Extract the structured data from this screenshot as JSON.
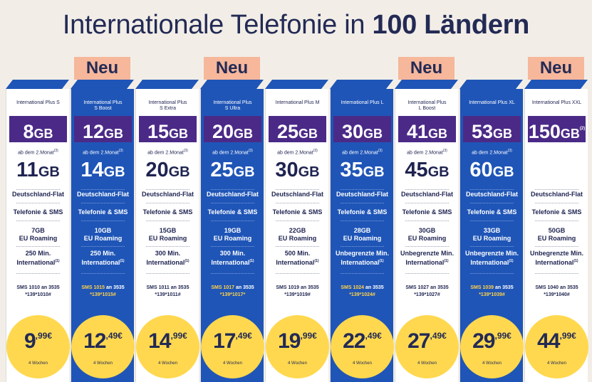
{
  "title": {
    "pre": "Internationale Telefonie in",
    "bold": "100 Ländern"
  },
  "labels": {
    "ab": "ab dem 2.Monat",
    "ab_sup": "(3)",
    "deutschland": "Deutschland-Flat",
    "telefonie": "Telefonie & SMS",
    "eu": "EU Roaming",
    "international": "International",
    "intl_sup": "(1)",
    "weeks": "4 Wochen",
    "sms_sep": "an 3535"
  },
  "colors": {
    "blue": "#1f55b7",
    "purple": "#4b2a87",
    "yellow": "#ffd84f",
    "neu": "#f6b79b"
  },
  "plans": [
    {
      "name1": "International Plus S",
      "name2": "",
      "neu": "",
      "gb": "8",
      "gb_unit": "GB",
      "gb_sup": "",
      "ab2": "11",
      "ab2_unit": "GB",
      "roam": "7GB",
      "min": "250 Min.",
      "sms": "SMS 1010",
      "code": "*139*1010#",
      "euro": "9",
      "cent": ",99€",
      "blue": false
    },
    {
      "name1": "International Plus",
      "name2": "S Boost",
      "neu": "Neu",
      "gb": "12",
      "gb_unit": "GB",
      "gb_sup": "",
      "ab2": "14",
      "ab2_unit": "GB",
      "roam": "10GB",
      "min": "250 Min.",
      "sms": "SMS 1015",
      "code": "*139*1015#",
      "euro": "12",
      "cent": ",49€",
      "blue": true
    },
    {
      "name1": "International Plus",
      "name2": "S Extra",
      "neu": "",
      "gb": "15",
      "gb_unit": "GB",
      "gb_sup": "",
      "ab2": "20",
      "ab2_unit": "GB",
      "roam": "15GB",
      "min": "300 Min.",
      "sms": "SMS 1011",
      "code": "*139*1011#",
      "euro": "14",
      "cent": ",99€",
      "blue": false
    },
    {
      "name1": "International Plus",
      "name2": "S Ultra",
      "neu": "Neu",
      "gb": "20",
      "gb_unit": "GB",
      "gb_sup": "",
      "ab2": "25",
      "ab2_unit": "GB",
      "roam": "19GB",
      "min": "300 Min.",
      "sms": "SMS 1017",
      "code": "*139*1017*",
      "euro": "17",
      "cent": ",49€",
      "blue": true
    },
    {
      "name1": "International Plus M",
      "name2": "",
      "neu": "",
      "gb": "25",
      "gb_unit": "GB",
      "gb_sup": "",
      "ab2": "30",
      "ab2_unit": "GB",
      "roam": "22GB",
      "min": "500 Min.",
      "sms": "SMS 1019",
      "code": "*139*1019#",
      "euro": "19",
      "cent": ",99€",
      "blue": false
    },
    {
      "name1": "International Plus L",
      "name2": "",
      "neu": "",
      "gb": "30",
      "gb_unit": "GB",
      "gb_sup": "",
      "ab2": "35",
      "ab2_unit": "GB",
      "roam": "28GB",
      "min": "Unbegrenzte Min.",
      "sms": "SMS 1024",
      "code": "*139*1024#",
      "euro": "22",
      "cent": ",49€",
      "blue": true
    },
    {
      "name1": "International Plus",
      "name2": "L Boost",
      "neu": "Neu",
      "gb": "41",
      "gb_unit": "GB",
      "gb_sup": "",
      "ab2": "45",
      "ab2_unit": "GB",
      "roam": "30GB",
      "min": "Unbegrenzte Min.",
      "sms": "SMS 1027",
      "code": "*139*1027#",
      "euro": "27",
      "cent": ",49€",
      "blue": false
    },
    {
      "name1": "International Plus XL",
      "name2": "",
      "neu": "",
      "gb": "53",
      "gb_unit": "GB",
      "gb_sup": "",
      "ab2": "60",
      "ab2_unit": "GB",
      "roam": "33GB",
      "min": "Unbegrenzte Min.",
      "sms": "SMS 1039",
      "code": "*139*1039#",
      "euro": "29",
      "cent": ",99€",
      "blue": true
    },
    {
      "name1": "International Plus XXL",
      "name2": "",
      "neu": "Neu",
      "gb": "150",
      "gb_unit": "GB",
      "gb_sup": "(2)",
      "ab2": "",
      "ab2_unit": "",
      "roam": "50GB",
      "min": "Unbegrenzte Min.",
      "sms": "SMS 1040",
      "code": "*139*1040#",
      "euro": "44",
      "cent": ",99€",
      "blue": false,
      "no_ab": true
    }
  ]
}
